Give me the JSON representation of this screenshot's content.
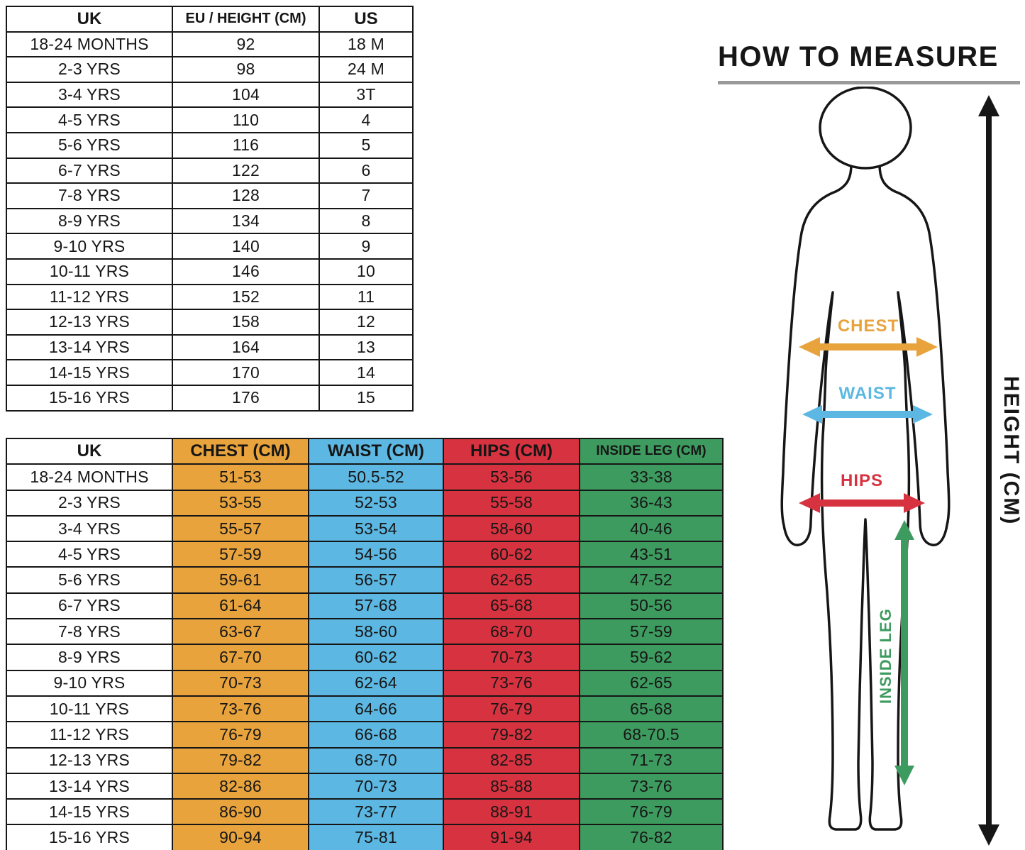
{
  "diagram": {
    "title": "HOW TO MEASURE",
    "labels": {
      "chest": "CHEST",
      "waist": "WAIST",
      "hips": "HIPS",
      "inside_leg": "INSIDE LEG",
      "height": "HEIGHT (CM)"
    }
  },
  "colors": {
    "chest": "#E8A33D",
    "waist": "#5CB8E2",
    "hips": "#D6323F",
    "inside_leg": "#3E9B5F",
    "ink": "#161616",
    "title_rule": "#9a9a9a"
  },
  "size_table": {
    "headers": [
      "UK",
      "EU / HEIGHT (CM)",
      "US"
    ],
    "rows": [
      [
        "18-24 MONTHS",
        "92",
        "18 M"
      ],
      [
        "2-3 YRS",
        "98",
        "24 M"
      ],
      [
        "3-4 YRS",
        "104",
        "3T"
      ],
      [
        "4-5 YRS",
        "110",
        "4"
      ],
      [
        "5-6 YRS",
        "116",
        "5"
      ],
      [
        "6-7 YRS",
        "122",
        "6"
      ],
      [
        "7-8 YRS",
        "128",
        "7"
      ],
      [
        "8-9 YRS",
        "134",
        "8"
      ],
      [
        "9-10 YRS",
        "140",
        "9"
      ],
      [
        "10-11 YRS",
        "146",
        "10"
      ],
      [
        "11-12 YRS",
        "152",
        "11"
      ],
      [
        "12-13 YRS",
        "158",
        "12"
      ],
      [
        "13-14 YRS",
        "164",
        "13"
      ],
      [
        "14-15 YRS",
        "170",
        "14"
      ],
      [
        "15-16 YRS",
        "176",
        "15"
      ]
    ]
  },
  "measure_table": {
    "headers": [
      "UK",
      "CHEST (CM)",
      "WAIST (CM)",
      "HIPS (CM)",
      "INSIDE LEG (CM)"
    ],
    "rows": [
      [
        "18-24 MONTHS",
        "51-53",
        "50.5-52",
        "53-56",
        "33-38"
      ],
      [
        "2-3 YRS",
        "53-55",
        "52-53",
        "55-58",
        "36-43"
      ],
      [
        "3-4 YRS",
        "55-57",
        "53-54",
        "58-60",
        "40-46"
      ],
      [
        "4-5 YRS",
        "57-59",
        "54-56",
        "60-62",
        "43-51"
      ],
      [
        "5-6 YRS",
        "59-61",
        "56-57",
        "62-65",
        "47-52"
      ],
      [
        "6-7 YRS",
        "61-64",
        "57-68",
        "65-68",
        "50-56"
      ],
      [
        "7-8 YRS",
        "63-67",
        "58-60",
        "68-70",
        "57-59"
      ],
      [
        "8-9 YRS",
        "67-70",
        "60-62",
        "70-73",
        "59-62"
      ],
      [
        "9-10 YRS",
        "70-73",
        "62-64",
        "73-76",
        "62-65"
      ],
      [
        "10-11 YRS",
        "73-76",
        "64-66",
        "76-79",
        "65-68"
      ],
      [
        "11-12 YRS",
        "76-79",
        "66-68",
        "79-82",
        "68-70.5"
      ],
      [
        "12-13 YRS",
        "79-82",
        "68-70",
        "82-85",
        "71-73"
      ],
      [
        "13-14 YRS",
        "82-86",
        "70-73",
        "85-88",
        "73-76"
      ],
      [
        "14-15 YRS",
        "86-90",
        "73-77",
        "88-91",
        "76-79"
      ],
      [
        "15-16 YRS",
        "90-94",
        "75-81",
        "91-94",
        "76-82"
      ]
    ]
  }
}
